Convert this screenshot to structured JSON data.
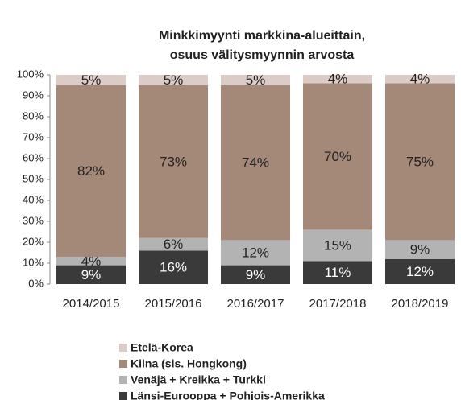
{
  "chart_data": {
    "type": "stacked_bar",
    "title": [
      "Minkkimyynti markkina-alueittain,",
      "osuus välitysmyynnin arvosta"
    ],
    "categories": [
      "2014/2015",
      "2015/2016",
      "2016/2017",
      "2017/2018",
      "2018/2019"
    ],
    "series": [
      {
        "name": "Länsi-Eurooppa + Pohjois-Amerikka",
        "color": "#3a3a3a",
        "values": [
          9,
          16,
          9,
          11,
          12
        ],
        "value_labels": [
          "9%",
          "16%",
          "9%",
          "11%",
          "12%"
        ]
      },
      {
        "name": "Venäjä + Kreikka + Turkki",
        "color": "#b3b3b3",
        "values": [
          4,
          6,
          12,
          15,
          9
        ],
        "value_labels": [
          "4%",
          "6%",
          "12%",
          "15%",
          "9%"
        ]
      },
      {
        "name": "Kiina (sis. Hongkong)",
        "color": "#a48878",
        "values": [
          82,
          73,
          74,
          70,
          75
        ],
        "value_labels": [
          "82%",
          "73%",
          "74%",
          "70%",
          "75%"
        ]
      },
      {
        "name": "Etelä-Korea",
        "color": "#dcccc8",
        "values": [
          5,
          5,
          5,
          4,
          4
        ],
        "value_labels": [
          "5%",
          "5%",
          "5%",
          "4%",
          "4%"
        ]
      }
    ],
    "ylim": [
      0,
      100
    ],
    "yticks": [
      {
        "value": 0,
        "label": "0%"
      },
      {
        "value": 10,
        "label": "10%"
      },
      {
        "value": 20,
        "label": "20%"
      },
      {
        "value": 30,
        "label": "30%"
      },
      {
        "value": 40,
        "label": "40%"
      },
      {
        "value": 50,
        "label": "50%"
      },
      {
        "value": 60,
        "label": "60%"
      },
      {
        "value": 70,
        "label": "70%"
      },
      {
        "value": 80,
        "label": "80%"
      },
      {
        "value": 90,
        "label": "90%"
      },
      {
        "value": 100,
        "label": "100%"
      }
    ],
    "grid": false,
    "legend": "bottom"
  }
}
